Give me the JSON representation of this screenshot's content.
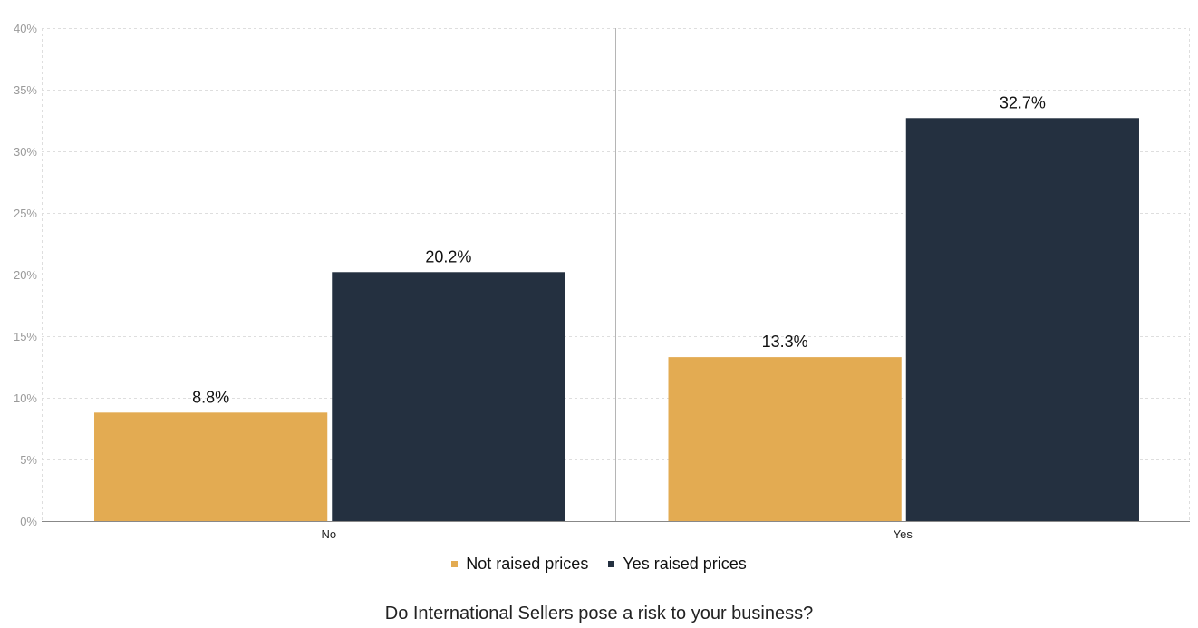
{
  "chart_data": {
    "type": "bar",
    "categories": [
      "No",
      "Yes"
    ],
    "series": [
      {
        "name": "Not raised prices",
        "values": [
          8.8,
          13.3
        ],
        "labels": [
          "8.8%",
          "13.3%"
        ],
        "color": "#E3AB52"
      },
      {
        "name": "Yes raised prices",
        "values": [
          20.2,
          32.7
        ],
        "labels": [
          "20.2%",
          "32.7%"
        ],
        "color": "#243040"
      }
    ],
    "y_ticks": [
      "0%",
      "5%",
      "10%",
      "15%",
      "20%",
      "25%",
      "30%",
      "35%",
      "40%"
    ],
    "ylim": [
      0,
      40
    ],
    "y_unit": "%",
    "grid": true,
    "legend_position": "bottom",
    "xlabel": "Do International Sellers pose a risk to your business?"
  }
}
